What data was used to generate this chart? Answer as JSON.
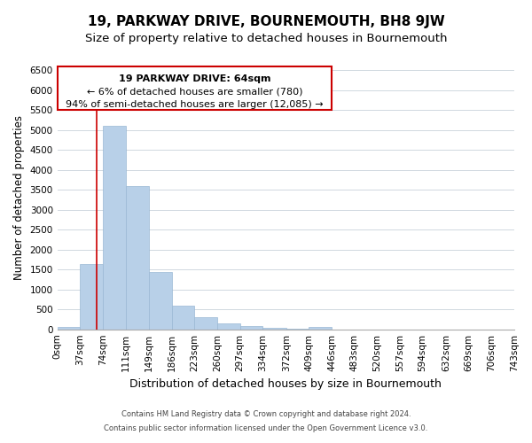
{
  "title": "19, PARKWAY DRIVE, BOURNEMOUTH, BH8 9JW",
  "subtitle": "Size of property relative to detached houses in Bournemouth",
  "xlabel": "Distribution of detached houses by size in Bournemouth",
  "ylabel": "Number of detached properties",
  "bin_edges": [
    0,
    37,
    74,
    111,
    149,
    186,
    223,
    260,
    297,
    334,
    372,
    409,
    446,
    483,
    520,
    557,
    594,
    632,
    669,
    706,
    743
  ],
  "bin_labels": [
    "0sqm",
    "37sqm",
    "74sqm",
    "111sqm",
    "149sqm",
    "186sqm",
    "223sqm",
    "260sqm",
    "297sqm",
    "334sqm",
    "372sqm",
    "409sqm",
    "446sqm",
    "483sqm",
    "520sqm",
    "557sqm",
    "594sqm",
    "632sqm",
    "669sqm",
    "706sqm",
    "743sqm"
  ],
  "counts": [
    50,
    1650,
    5100,
    3600,
    1430,
    590,
    305,
    155,
    80,
    35,
    15,
    70,
    0,
    0,
    0,
    0,
    0,
    0,
    0,
    0
  ],
  "bar_color": "#b8d0e8",
  "bar_edge_color": "#9ab8d4",
  "ylim": [
    0,
    6600
  ],
  "yticks": [
    0,
    500,
    1000,
    1500,
    2000,
    2500,
    3000,
    3500,
    4000,
    4500,
    5000,
    5500,
    6000,
    6500
  ],
  "grid_color": "#d0d8e0",
  "property_line_x": 64,
  "property_line_color": "#cc0000",
  "ann_line1": "19 PARKWAY DRIVE: 64sqm",
  "ann_line2": "← 6% of detached houses are smaller (780)",
  "ann_line3": "94% of semi-detached houses are larger (12,085) →",
  "footer_line1": "Contains HM Land Registry data © Crown copyright and database right 2024.",
  "footer_line2": "Contains public sector information licensed under the Open Government Licence v3.0.",
  "background_color": "#ffffff",
  "title_fontsize": 11,
  "subtitle_fontsize": 9.5,
  "xlabel_fontsize": 9,
  "ylabel_fontsize": 8.5,
  "tick_fontsize": 7.5,
  "ann_fontsize": 8,
  "footer_fontsize": 6
}
